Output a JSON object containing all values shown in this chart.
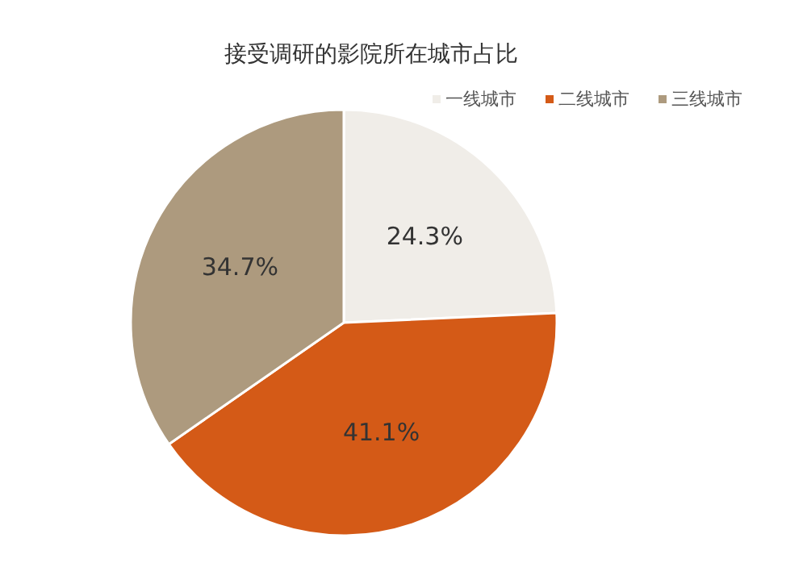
{
  "chart_data": {
    "type": "pie",
    "title": "接受调研的影院所在城市占比",
    "categories": [
      "一线城市",
      "二线城市",
      "三线城市"
    ],
    "values": [
      24.3,
      41.1,
      34.7
    ],
    "colors": [
      "#f0ede8",
      "#d45a17",
      "#ad9a7e"
    ],
    "value_labels": [
      "24.3%",
      "41.1%",
      "34.7%"
    ],
    "legend": "top right"
  }
}
